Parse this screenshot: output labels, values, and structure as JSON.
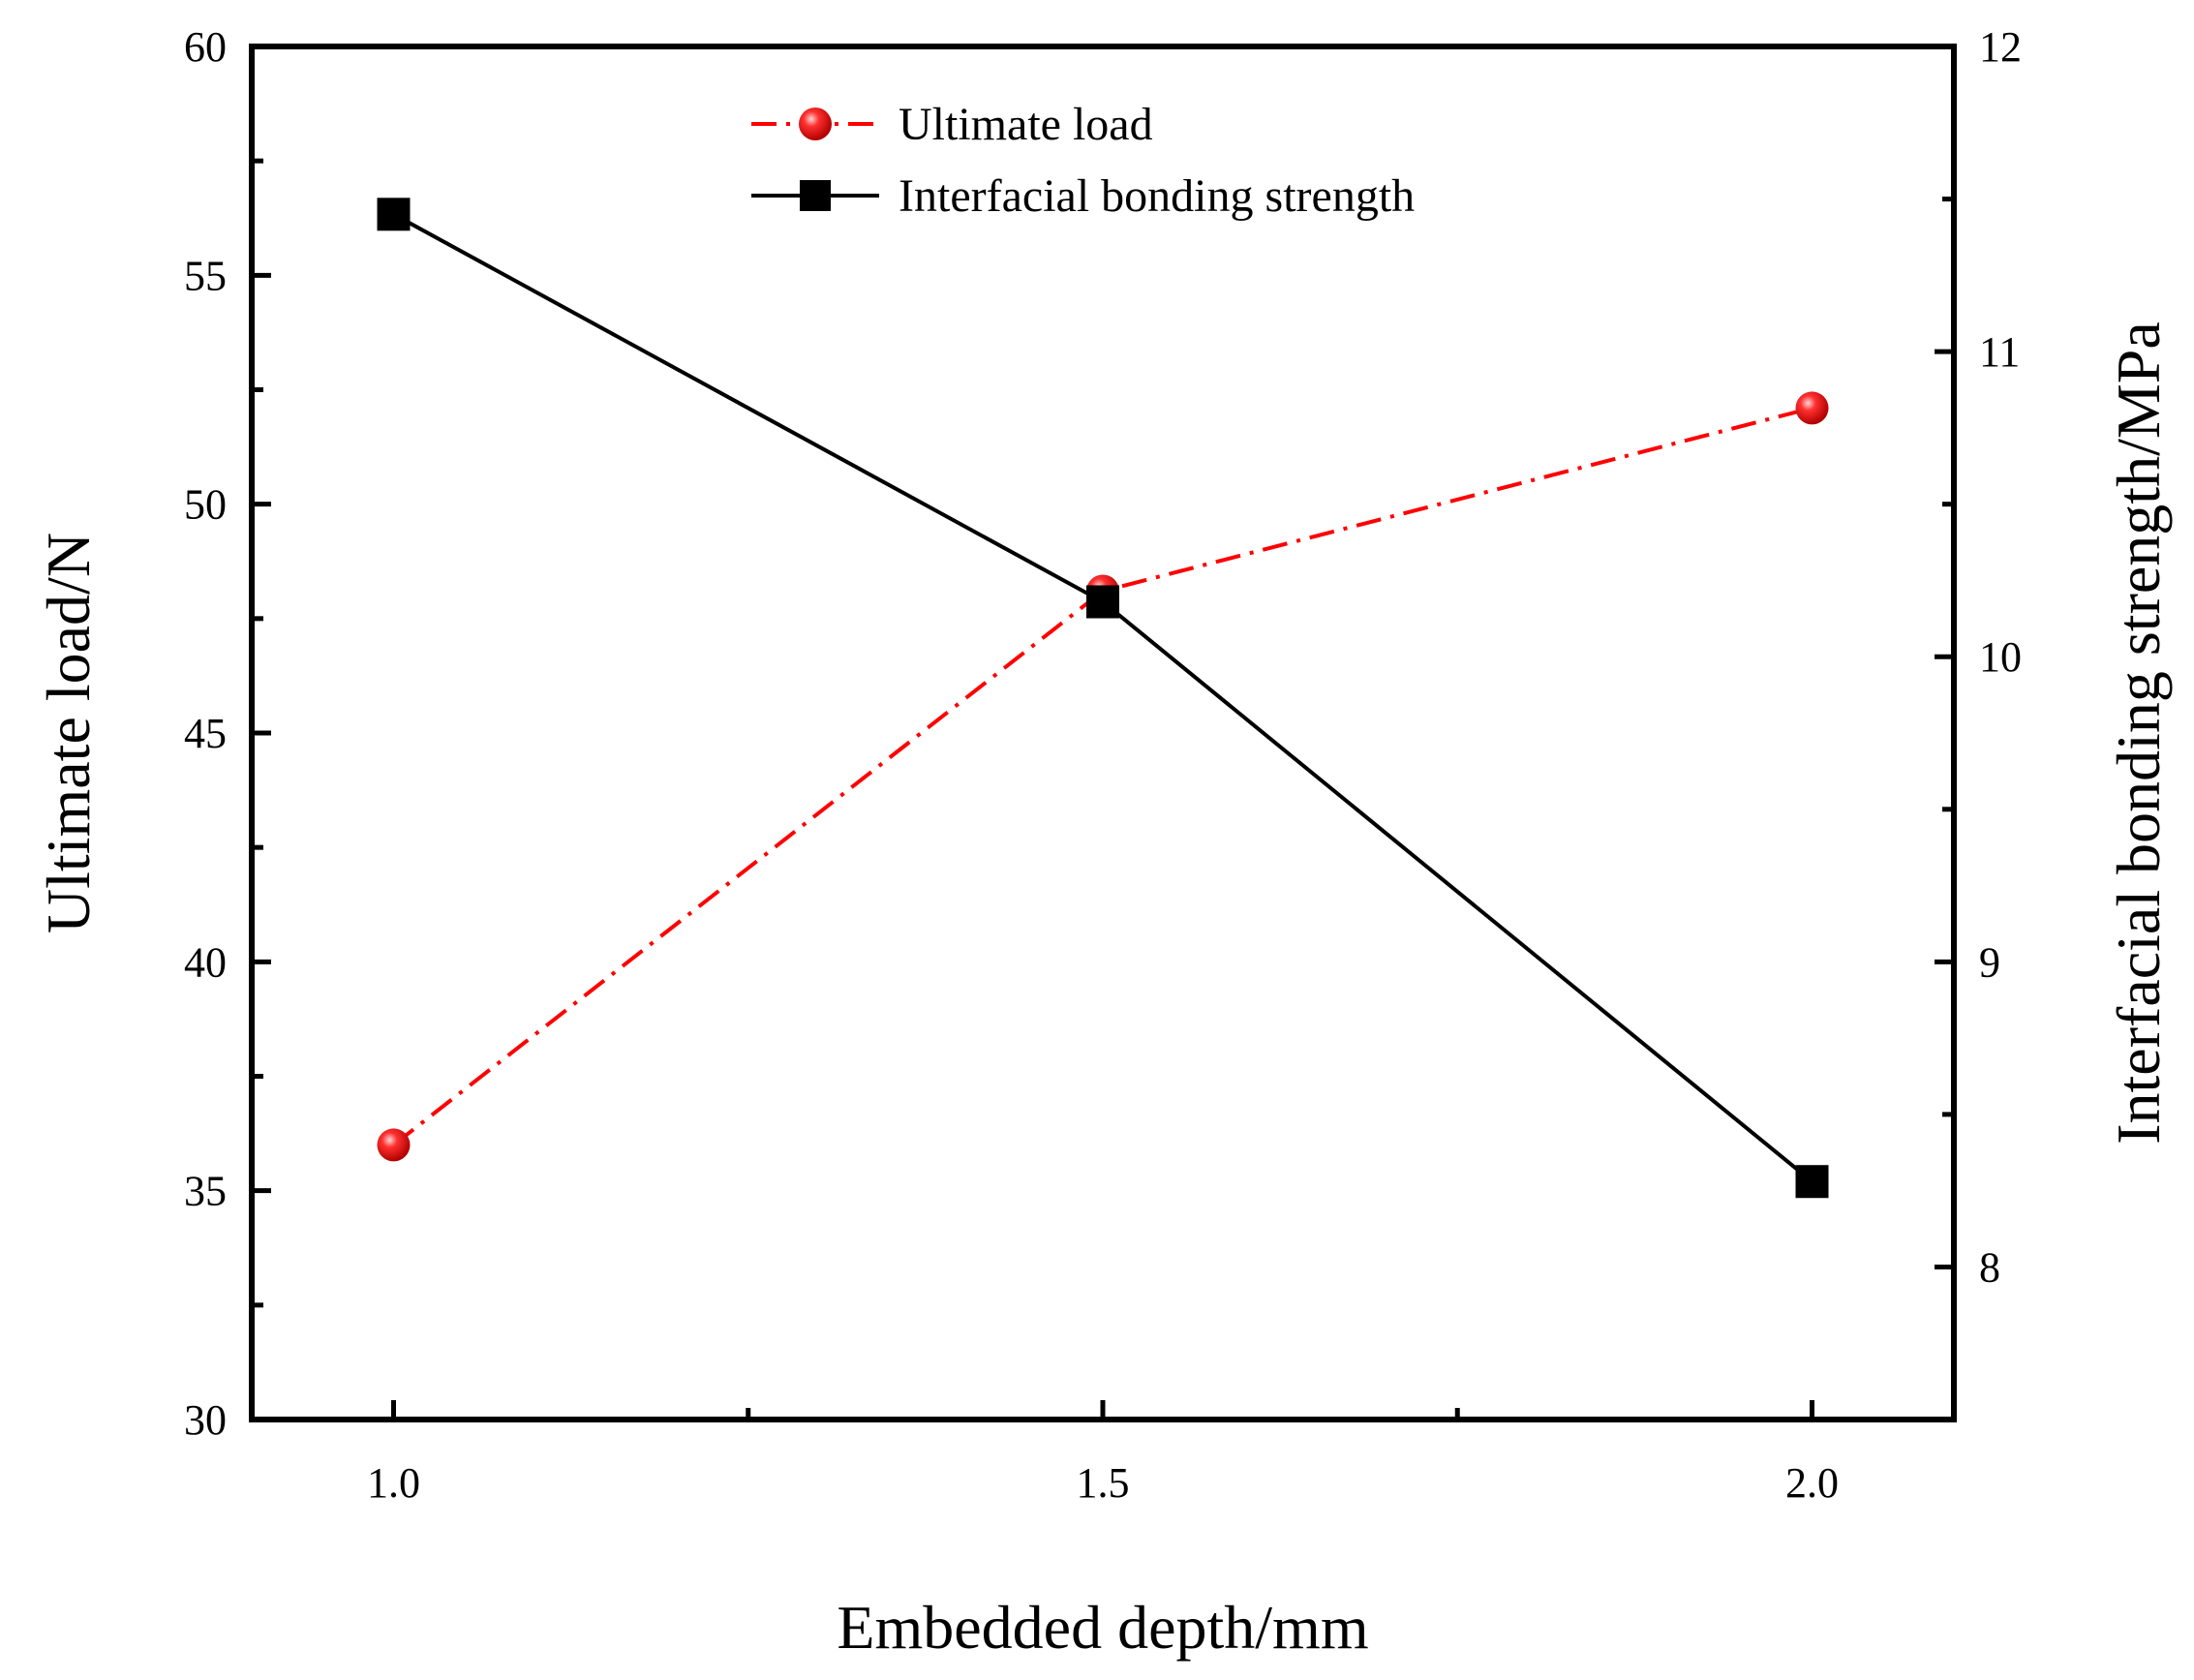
{
  "chart_data": {
    "type": "line",
    "title": "",
    "xlabel": "Embedded depth/mm",
    "ylabel": "Ultimate load/N",
    "ylabel_right": "Interfacial bonding strength/MPa",
    "x": [
      1.0,
      1.5,
      2.0
    ],
    "x_ticks": [
      "1.0",
      "1.5",
      "2.0"
    ],
    "xlim": [
      0.9,
      2.1
    ],
    "ylim": [
      30,
      60
    ],
    "y_ticks": [
      "30",
      "35",
      "40",
      "45",
      "50",
      "55",
      "60"
    ],
    "ylim_right": [
      7.5,
      12
    ],
    "y_right_ticks": [
      "8",
      "9",
      "10",
      "11",
      "12"
    ],
    "grid": false,
    "legend_position": "top-center",
    "series": [
      {
        "name": "Ultimate load",
        "axis": "left",
        "values": [
          36.0,
          48.1,
          52.1
        ],
        "color": "#ff0000",
        "line_style": "dash-dot",
        "marker": "circle"
      },
      {
        "name": "Interfacial bonding strength",
        "axis": "right",
        "values": [
          11.45,
          10.18,
          8.28
        ],
        "color": "#000000",
        "line_style": "solid",
        "marker": "square"
      }
    ]
  }
}
